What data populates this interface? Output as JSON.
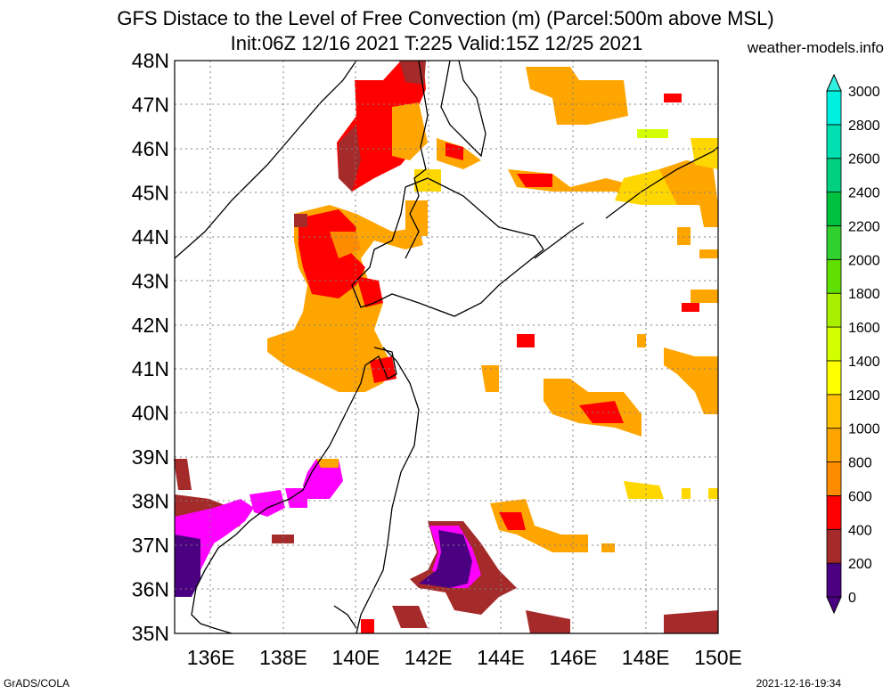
{
  "title_line1": "GFS Distace to the Level of Free Convection (m) (Parcel:500m above MSL)",
  "title_line2": "Init:06Z 12/16 2021 T:225 Valid:15Z 12/25 2021",
  "site": "weather-models.info",
  "footer_left": "GrADS/COLA",
  "footer_right": "2021-12-16-19:34",
  "lat_labels": [
    "48N",
    "47N",
    "46N",
    "45N",
    "44N",
    "43N",
    "42N",
    "41N",
    "40N",
    "39N",
    "38N",
    "37N",
    "36N",
    "35N"
  ],
  "lon_labels": [
    "136E",
    "138E",
    "140E",
    "142E",
    "144E",
    "146E",
    "148E",
    "150E"
  ],
  "colorbar": {
    "labels": [
      "0",
      "200",
      "400",
      "600",
      "800",
      "1000",
      "1200",
      "1400",
      "1600",
      "1800",
      "2000",
      "2200",
      "2400",
      "2600",
      "2800",
      "3000"
    ],
    "colors": [
      "#4b0082",
      "#ff00ff",
      "#a52a2a",
      "#ff0000",
      "#ff8c00",
      "#ffa500",
      "#ffc000",
      "#ffff00",
      "#d4ff00",
      "#a8f000",
      "#60e000",
      "#30d030",
      "#00c040",
      "#00d080",
      "#00e0b0",
      "#00f0e0"
    ]
  }
}
